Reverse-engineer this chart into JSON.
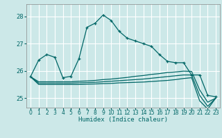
{
  "xlabel": "Humidex (Indice chaleur)",
  "bg_color": "#cce8e8",
  "grid_color": "#ffffff",
  "line_color": "#006666",
  "xlim": [
    -0.5,
    23.5
  ],
  "ylim": [
    24.65,
    28.45
  ],
  "yticks": [
    25,
    26,
    27,
    28
  ],
  "xticks": [
    0,
    1,
    2,
    3,
    4,
    5,
    6,
    7,
    8,
    9,
    10,
    11,
    12,
    13,
    14,
    15,
    16,
    17,
    18,
    19,
    20,
    21,
    22,
    23
  ],
  "main_x": [
    0,
    1,
    2,
    3,
    4,
    5,
    6,
    7,
    8,
    9,
    10,
    11,
    12,
    13,
    14,
    15,
    16,
    17,
    18,
    19,
    20,
    21,
    22,
    23
  ],
  "main_y": [
    25.8,
    26.4,
    26.6,
    26.5,
    25.75,
    25.8,
    26.45,
    27.6,
    27.75,
    28.05,
    27.85,
    27.45,
    27.2,
    27.1,
    27.0,
    26.9,
    26.6,
    26.35,
    26.3,
    26.3,
    25.85,
    25.85,
    25.1,
    25.05
  ],
  "line2_x": [
    0,
    1,
    2,
    3,
    4,
    5,
    6,
    7,
    8,
    9,
    10,
    11,
    12,
    13,
    14,
    15,
    16,
    17,
    18,
    19,
    20,
    21,
    22,
    23
  ],
  "line2_y": [
    25.78,
    25.6,
    25.6,
    25.6,
    25.6,
    25.6,
    25.62,
    25.63,
    25.65,
    25.68,
    25.7,
    25.73,
    25.76,
    25.8,
    25.83,
    25.87,
    25.9,
    25.94,
    25.96,
    25.99,
    25.98,
    25.3,
    24.85,
    25.0
  ],
  "line3_x": [
    0,
    1,
    2,
    3,
    4,
    5,
    6,
    7,
    8,
    9,
    10,
    11,
    12,
    13,
    14,
    15,
    16,
    17,
    18,
    19,
    20,
    21,
    22,
    23
  ],
  "line3_y": [
    25.78,
    25.55,
    25.55,
    25.55,
    25.55,
    25.55,
    25.56,
    25.57,
    25.58,
    25.6,
    25.62,
    25.64,
    25.66,
    25.68,
    25.7,
    25.73,
    25.76,
    25.79,
    25.82,
    25.85,
    25.85,
    25.1,
    24.7,
    25.0
  ],
  "line4_x": [
    0,
    1,
    2,
    3,
    4,
    5,
    6,
    7,
    8,
    9,
    10,
    11,
    12,
    13,
    14,
    15,
    16,
    17,
    18,
    19,
    20,
    21,
    22,
    23
  ],
  "line4_y": [
    25.78,
    25.5,
    25.5,
    25.5,
    25.5,
    25.5,
    25.5,
    25.51,
    25.52,
    25.53,
    25.54,
    25.56,
    25.57,
    25.58,
    25.59,
    25.61,
    25.63,
    25.65,
    25.68,
    25.72,
    25.75,
    24.9,
    24.6,
    25.0
  ]
}
